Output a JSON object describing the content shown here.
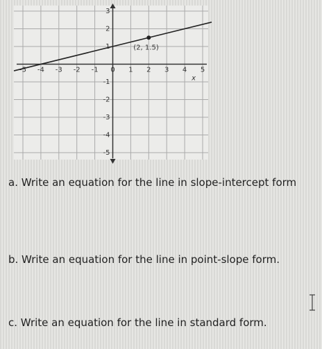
{
  "graph": {
    "xlim": [
      -5,
      5
    ],
    "ylim": [
      -5,
      3
    ],
    "xticks": [
      -5,
      -4,
      -3,
      -2,
      -1,
      0,
      1,
      2,
      3,
      4,
      5
    ],
    "yticks": [
      3,
      2,
      1,
      -1,
      -2,
      -3,
      -4,
      -5
    ],
    "xlabel": "x",
    "point": {
      "x": 2,
      "y": 1.5,
      "label": "(2, 1.5)"
    },
    "line": {
      "x": [
        -5.5,
        5.5
      ],
      "y": [
        -0.375,
        2.375
      ]
    }
  },
  "questions": [
    "a. Write an equation for the line in slope-intercept form",
    "b. Write an equation for the line in point-slope form.",
    "c. Write an equation for the line in standard form."
  ]
}
